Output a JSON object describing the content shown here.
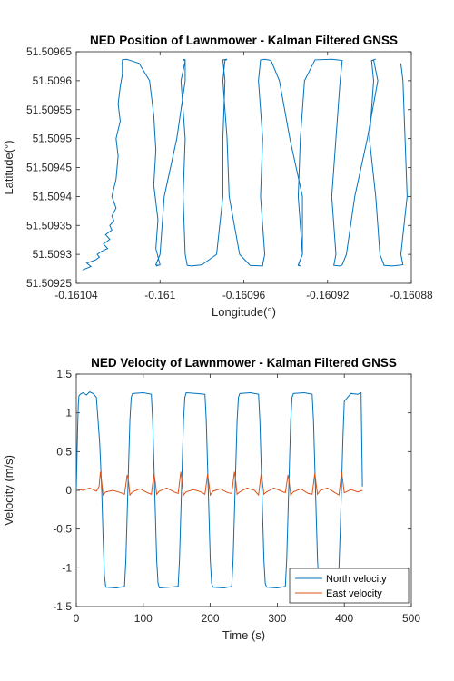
{
  "chart_data": [
    {
      "type": "line",
      "title": "NED Position of Lawnmower - Kalman Filtered GNSS",
      "xlabel": "Longitude(°)",
      "ylabel": "Latitude(°)",
      "xlim": [
        -0.16104,
        -0.16088
      ],
      "ylim": [
        51.50925,
        51.50965
      ],
      "xticks": [
        "-0.16104",
        "-0.161",
        "-0.16096",
        "-0.16092",
        "-0.16088"
      ],
      "yticks": [
        "51.50925",
        "51.5093",
        "51.50935",
        "51.5094",
        "51.50945",
        "51.5095",
        "51.50955",
        "51.5096",
        "51.50965"
      ],
      "grid": false,
      "color": "#0072BD",
      "series": [
        {
          "x": [
            -0.161037,
            -0.161033,
            -0.161035,
            -0.161031,
            -0.161029,
            -0.16103,
            -0.161028,
            -0.161025,
            -0.161027,
            -0.161024,
            -0.161026,
            -0.161023,
            -0.161024,
            -0.161022,
            -0.161023,
            -0.161021,
            -0.161023,
            -0.161021,
            -0.16102,
            -0.161021,
            -0.161019,
            -0.16102,
            -0.161019,
            -0.161018,
            -0.161018,
            -0.161016,
            -0.161015,
            -0.16101,
            -0.161005,
            -0.161003,
            -0.161002,
            -0.161003,
            -0.161001,
            -0.161002,
            -0.161,
            -0.161002,
            -0.161001,
            -0.161002,
            -0.161,
            -0.160998,
            -0.160992,
            -0.160988,
            -0.160988,
            -0.160989,
            -0.160988,
            -0.16099,
            -0.160988,
            -0.160989,
            -0.160988,
            -0.160987,
            -0.160985,
            -0.16098,
            -0.160973,
            -0.16097,
            -0.16097,
            -0.160969,
            -0.16097,
            -0.160968,
            -0.160969,
            -0.16097,
            -0.160968,
            -0.160967,
            -0.160962,
            -0.160957,
            -0.160951,
            -0.160951,
            -0.16095,
            -0.160952,
            -0.160951,
            -0.160953,
            -0.160952,
            -0.16095,
            -0.160947,
            -0.160943,
            -0.160938,
            -0.160932,
            -0.160932,
            -0.160934,
            -0.160933,
            -0.160934,
            -0.160932,
            -0.160934,
            -0.160933,
            -0.160931,
            -0.160926,
            -0.160918,
            -0.160913,
            -0.160914,
            -0.160916,
            -0.160918,
            -0.160916,
            -0.160917,
            -0.160914,
            -0.160913,
            -0.160911,
            -0.160907,
            -0.160901,
            -0.160896,
            -0.160898,
            -0.160897,
            -0.160899,
            -0.160898,
            -0.1609,
            -0.160897,
            -0.160895,
            -0.160893,
            -0.160889,
            -0.160884,
            -0.160885,
            -0.160882,
            -0.160883,
            -0.160884,
            -0.160885
          ],
          "y": [
            51.509273,
            51.509279,
            51.509285,
            51.50929,
            51.509295,
            51.5093,
            51.509305,
            51.50931,
            51.509318,
            51.509326,
            51.509334,
            51.509342,
            51.50935,
            51.509358,
            51.509366,
            51.50938,
            51.5094,
            51.50943,
            51.50947,
            51.5095,
            51.50953,
            51.50956,
            51.50959,
            51.50961,
            51.509636,
            51.509637,
            51.509636,
            51.50963,
            51.5096,
            51.50954,
            51.50948,
            51.50942,
            51.50936,
            51.50931,
            51.509282,
            51.50928,
            51.509281,
            51.509282,
            51.5093,
            51.5094,
            51.5095,
            51.5096,
            51.509636,
            51.509637,
            51.509634,
            51.5096,
            51.5095,
            51.5094,
            51.5093,
            51.509281,
            51.50928,
            51.509282,
            51.5093,
            51.5094,
            51.5095,
            51.5096,
            51.509636,
            51.509637,
            51.509635,
            51.5096,
            51.5095,
            51.5094,
            51.5093,
            51.509281,
            51.50928,
            51.509282,
            51.5093,
            51.5094,
            51.5095,
            51.5096,
            51.509636,
            51.509637,
            51.509635,
            51.5096,
            51.5095,
            51.5094,
            51.5093,
            51.509281,
            51.50928,
            51.509282,
            51.5093,
            51.5094,
            51.5095,
            51.5096,
            51.509636,
            51.509637,
            51.509635,
            51.5096,
            51.5095,
            51.5094,
            51.5093,
            51.509281,
            51.50928,
            51.509282,
            51.5093,
            51.5094,
            51.5095,
            51.5096,
            51.509636,
            51.509637,
            51.509635,
            51.5096,
            51.5095,
            51.5094,
            51.5093,
            51.509281,
            51.50928,
            51.509282,
            51.5093,
            51.5094,
            51.5095,
            51.5096,
            51.50963
          ]
        }
      ]
    },
    {
      "type": "line",
      "title": "NED Velocity of Lawnmower - Kalman Filtered GNSS",
      "xlabel": "Time (s)",
      "ylabel": "Velocity (m/s)",
      "xlim": [
        0,
        500
      ],
      "ylim": [
        -1.5,
        1.5
      ],
      "xticks": [
        "0",
        "100",
        "200",
        "300",
        "400",
        "500"
      ],
      "yticks": [
        "-1.5",
        "-1",
        "-0.5",
        "0",
        "0.5",
        "1",
        "1.5"
      ],
      "grid": false,
      "legend_position": "bottom-right",
      "series": [
        {
          "name": "North velocity",
          "color": "#0072BD",
          "x": [
            0,
            1,
            2,
            3,
            4,
            6,
            10,
            15,
            20,
            25,
            30,
            35,
            38,
            40,
            42,
            44,
            60,
            72,
            74,
            76,
            78,
            80,
            82,
            84,
            100,
            112,
            114,
            116,
            118,
            120,
            122,
            124,
            140,
            152,
            154,
            156,
            158,
            160,
            162,
            164,
            180,
            192,
            194,
            196,
            198,
            200,
            202,
            204,
            220,
            232,
            234,
            236,
            238,
            240,
            242,
            244,
            260,
            272,
            274,
            276,
            278,
            280,
            282,
            284,
            300,
            312,
            314,
            316,
            318,
            320,
            322,
            324,
            340,
            352,
            354,
            356,
            358,
            360,
            362,
            364,
            380,
            392,
            394,
            396,
            398,
            400,
            410,
            420,
            425,
            427
          ],
          "y": [
            0.0,
            0.4,
            0.8,
            1.1,
            1.22,
            1.24,
            1.26,
            1.23,
            1.27,
            1.25,
            1.2,
            0.6,
            0.0,
            -0.6,
            -1.1,
            -1.25,
            -1.26,
            -1.24,
            -0.9,
            -0.3,
            0.3,
            0.9,
            1.2,
            1.25,
            1.26,
            1.24,
            0.9,
            0.3,
            -0.3,
            -0.9,
            -1.2,
            -1.26,
            -1.25,
            -1.24,
            -0.9,
            -0.3,
            0.3,
            0.9,
            1.2,
            1.26,
            1.25,
            1.24,
            0.9,
            0.3,
            -0.3,
            -0.9,
            -1.2,
            -1.25,
            -1.26,
            -1.24,
            -0.9,
            -0.3,
            0.3,
            0.9,
            1.2,
            1.25,
            1.26,
            1.24,
            0.9,
            0.3,
            -0.3,
            -0.9,
            -1.2,
            -1.25,
            -1.26,
            -1.24,
            -0.9,
            -0.3,
            0.3,
            0.9,
            1.2,
            1.25,
            1.26,
            1.24,
            0.9,
            0.3,
            -0.3,
            -0.9,
            -1.2,
            -1.25,
            -1.24,
            -1.0,
            -0.5,
            0.1,
            0.7,
            1.15,
            1.25,
            1.24,
            1.26,
            0.05
          ]
        },
        {
          "name": "East velocity",
          "color": "#D95319",
          "x": [
            0,
            10,
            20,
            30,
            34,
            36,
            38,
            40,
            44,
            55,
            66,
            72,
            76,
            78,
            80,
            84,
            95,
            106,
            112,
            116,
            118,
            120,
            124,
            135,
            146,
            152,
            156,
            158,
            160,
            164,
            175,
            186,
            192,
            196,
            198,
            200,
            204,
            215,
            226,
            232,
            236,
            238,
            240,
            244,
            255,
            266,
            272,
            276,
            278,
            280,
            284,
            295,
            306,
            312,
            316,
            318,
            320,
            324,
            335,
            346,
            352,
            356,
            358,
            360,
            364,
            375,
            386,
            392,
            396,
            398,
            400,
            410,
            420,
            427
          ],
          "y": [
            0.02,
            0.0,
            0.03,
            -0.01,
            0.05,
            0.24,
            0.1,
            -0.06,
            -0.02,
            0.0,
            -0.03,
            -0.05,
            0.2,
            0.12,
            -0.06,
            -0.02,
            0.02,
            -0.03,
            -0.05,
            0.22,
            0.1,
            -0.05,
            -0.01,
            0.03,
            -0.02,
            -0.04,
            0.24,
            0.1,
            -0.06,
            -0.02,
            0.01,
            -0.02,
            -0.05,
            0.21,
            0.08,
            -0.06,
            -0.01,
            0.02,
            -0.03,
            -0.04,
            0.24,
            0.12,
            -0.05,
            -0.02,
            0.03,
            0.0,
            -0.06,
            0.22,
            0.1,
            -0.05,
            -0.02,
            0.03,
            -0.01,
            -0.03,
            0.2,
            0.09,
            -0.06,
            -0.02,
            0.02,
            -0.04,
            -0.05,
            0.22,
            0.08,
            -0.05,
            0.0,
            0.03,
            -0.03,
            -0.06,
            0.24,
            0.1,
            -0.03,
            0.01,
            -0.02,
            0.0
          ]
        }
      ]
    }
  ]
}
